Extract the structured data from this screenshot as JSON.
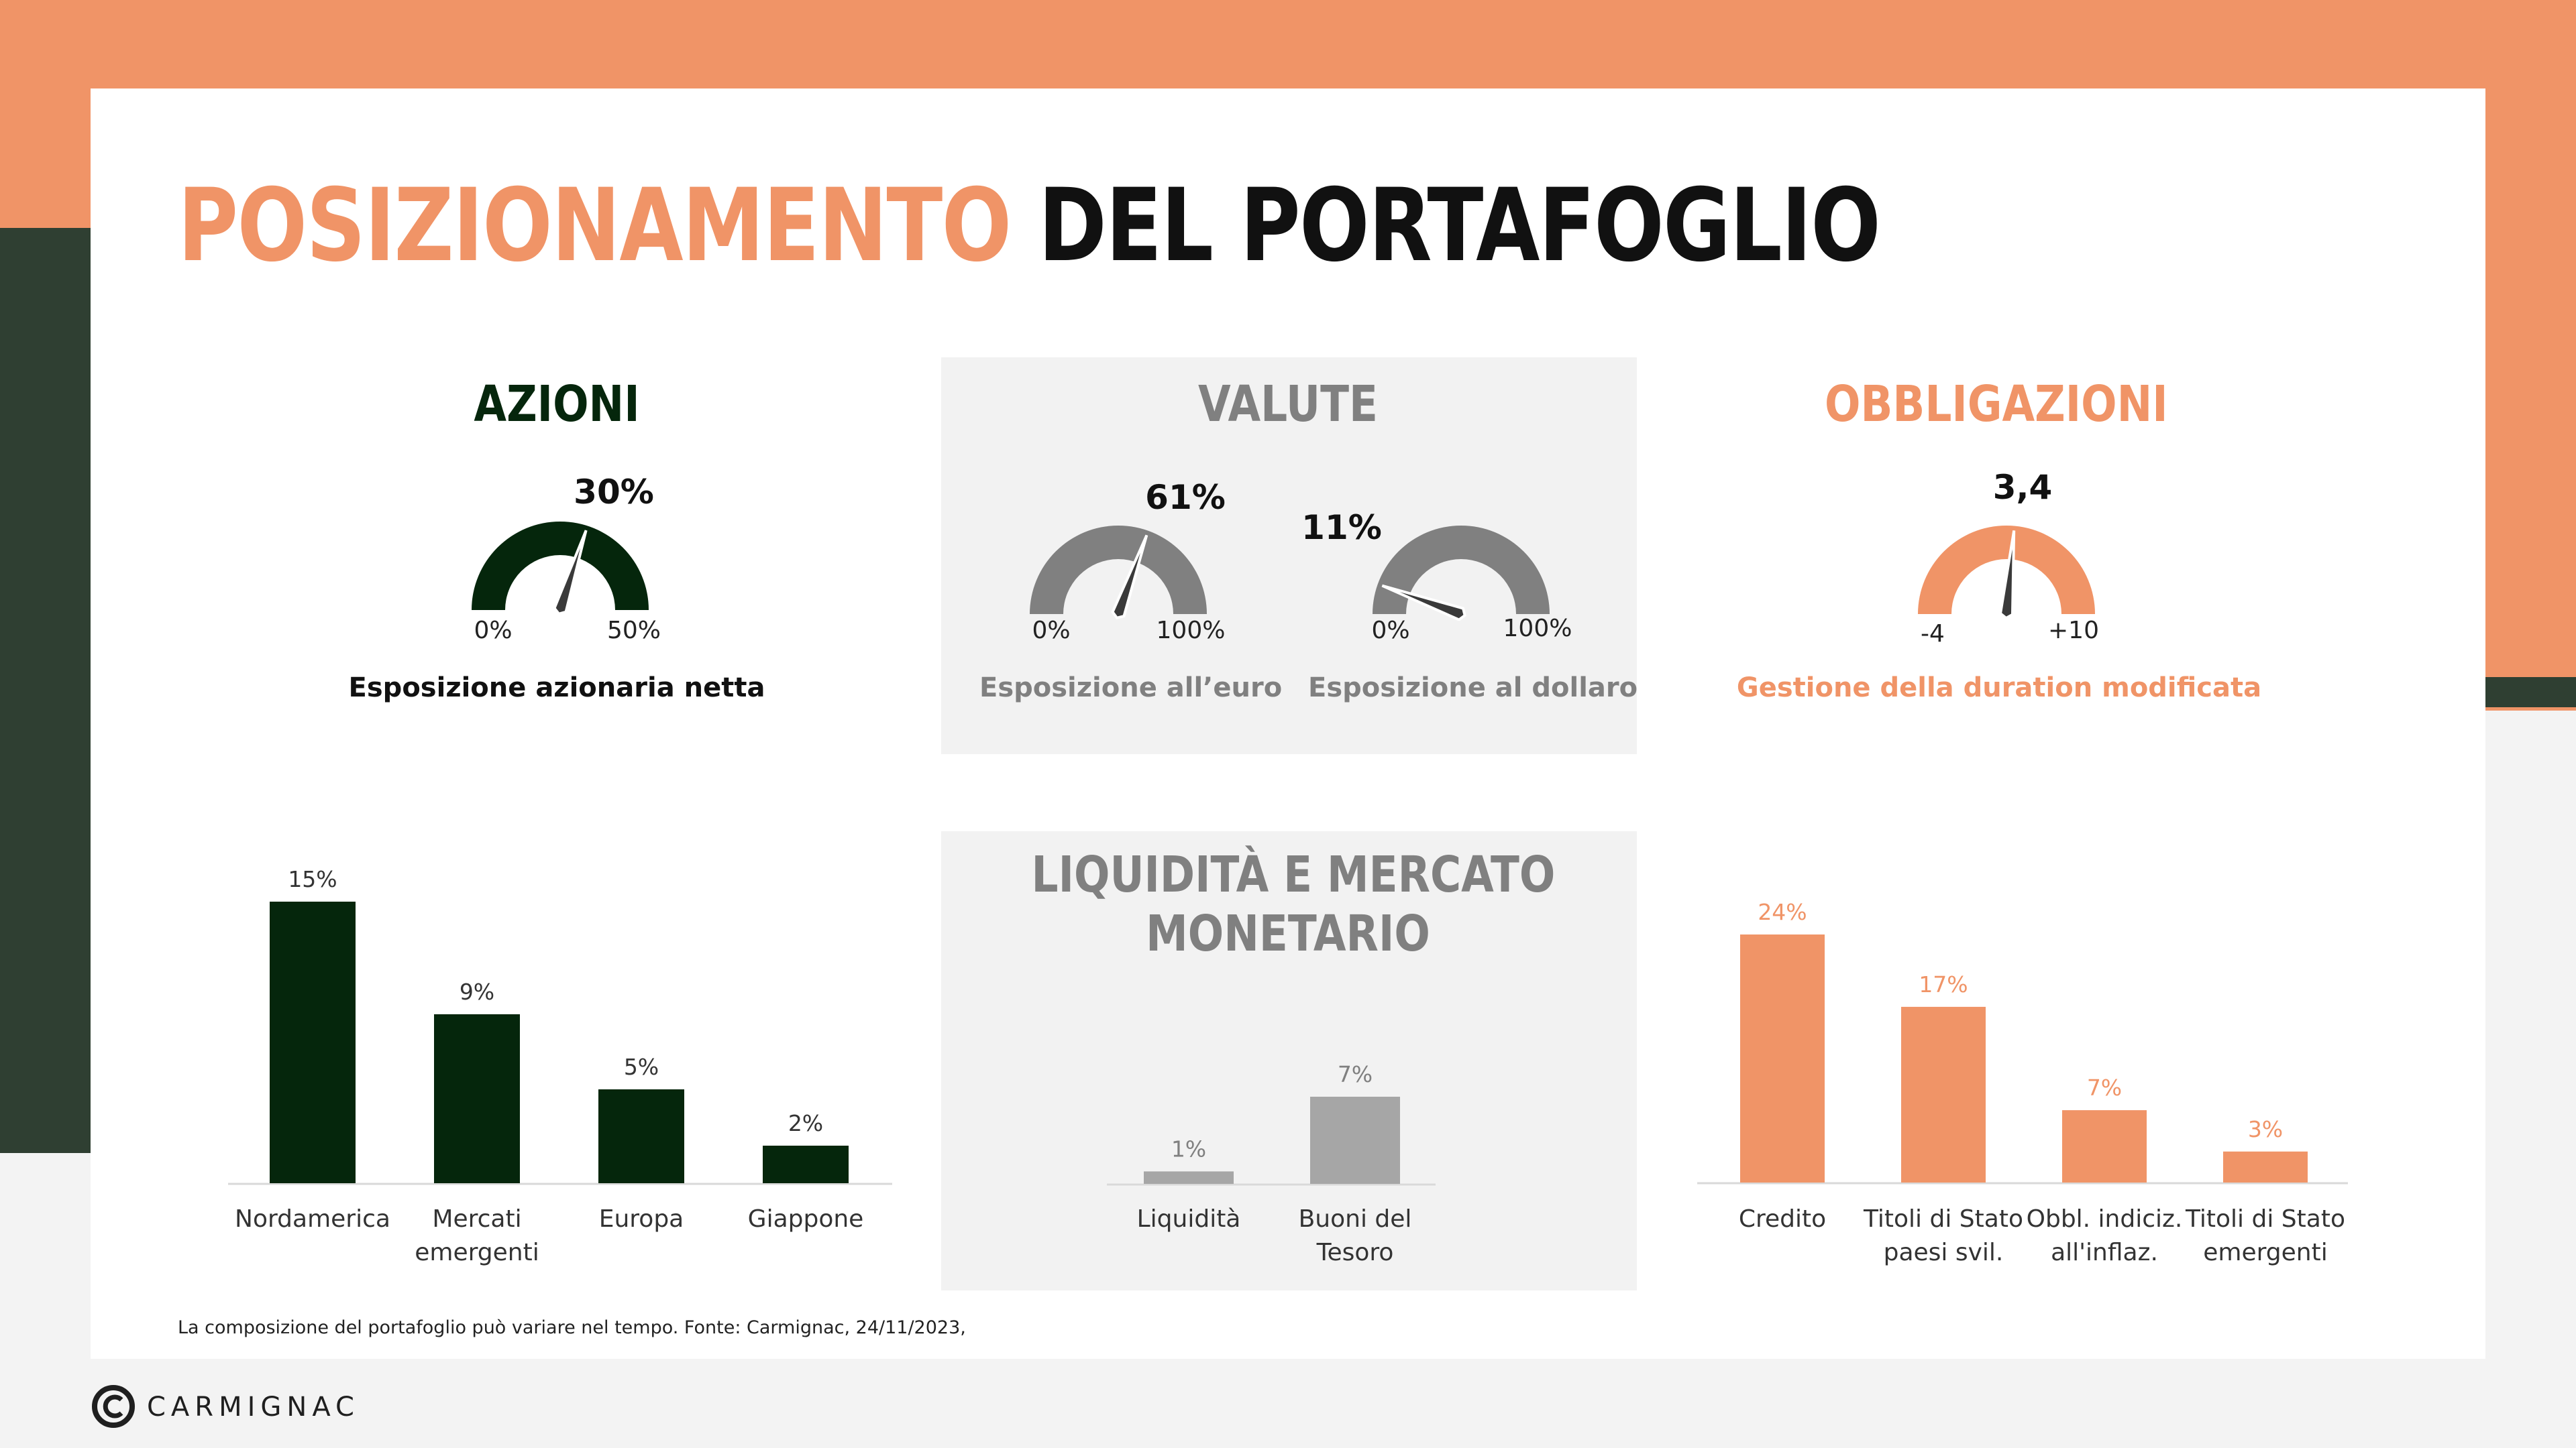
{
  "page": {
    "title_highlight": "POSIZIONAMENTO",
    "title_rest": "DEL PORTAFOGLIO",
    "footnote": "La composizione  del portafoglio  può variare nel tempo.  Fonte:  Carmignac, 24/11/2023,",
    "logo_text": "CARMIGNAC"
  },
  "colors": {
    "brand_orange": "#f09467",
    "dark_green": "#05260c",
    "gray": "#a6a6a6",
    "gauge_gray": "#808080",
    "panel": "#f2f2f2"
  },
  "sections": {
    "azioni": {
      "title": "AZIONI"
    },
    "valute": {
      "title": "VALUTE"
    },
    "obbligazioni": {
      "title": "OBBLIGAZIONI"
    },
    "liquidita": {
      "title_line1": "LIQUIDITÀ E MERCATO",
      "title_line2": "MONETARIO"
    }
  },
  "gauges": [
    {
      "label": "30%",
      "value": 30,
      "min": 0,
      "max": 50,
      "min_label": "0%",
      "max_label": "50%",
      "caption": "Esposizione  azionaria netta",
      "color": "#05260c"
    },
    {
      "label": "61%",
      "value": 61,
      "min": 0,
      "max": 100,
      "min_label": "0%",
      "max_label": "100%",
      "caption": "Esposizione  all’euro",
      "color": "#808080"
    },
    {
      "label": "11%",
      "value": 11,
      "min": 0,
      "max": 100,
      "min_label": "0%",
      "max_label": "100%",
      "caption": "Esposizione  al dollaro",
      "color": "#808080"
    },
    {
      "label": "3,4",
      "value": 3.4,
      "min": -4,
      "max": 10,
      "min_label": "-4",
      "max_label": "+10",
      "caption": "Gestione della duration modificata",
      "color": "#f09467"
    }
  ],
  "chart_data": [
    {
      "type": "bar",
      "name": "azioni",
      "categories": [
        [
          "Nordamerica"
        ],
        [
          "Mercati",
          "emergenti"
        ],
        [
          "Europa"
        ],
        [
          "Giappone"
        ]
      ],
      "values": [
        15,
        9,
        5,
        2
      ],
      "labels": [
        "15%",
        "9%",
        "5%",
        "2%"
      ],
      "ylim": [
        0,
        15
      ],
      "color": "#05260c",
      "label_color": "#333333"
    },
    {
      "type": "bar",
      "name": "liquidita",
      "categories": [
        [
          "Liquidità"
        ],
        [
          "Buoni del",
          "Tesoro"
        ]
      ],
      "values": [
        1,
        7
      ],
      "labels": [
        "1%",
        "7%"
      ],
      "ylim": [
        0,
        7
      ],
      "color": "#a6a6a6",
      "label_color": "#808080"
    },
    {
      "type": "bar",
      "name": "obbligazioni",
      "categories": [
        [
          "Credito"
        ],
        [
          "Titoli di Stato",
          "paesi svil."
        ],
        [
          "Obbl. indiciz.",
          "all'inflaz."
        ],
        [
          "Titoli di Stato",
          "emergenti"
        ]
      ],
      "values": [
        24,
        17,
        7,
        3
      ],
      "labels": [
        "24%",
        "17%",
        "7%",
        "3%"
      ],
      "ylim": [
        0,
        24
      ],
      "color": "#f09467",
      "label_color": "#f09467"
    }
  ]
}
